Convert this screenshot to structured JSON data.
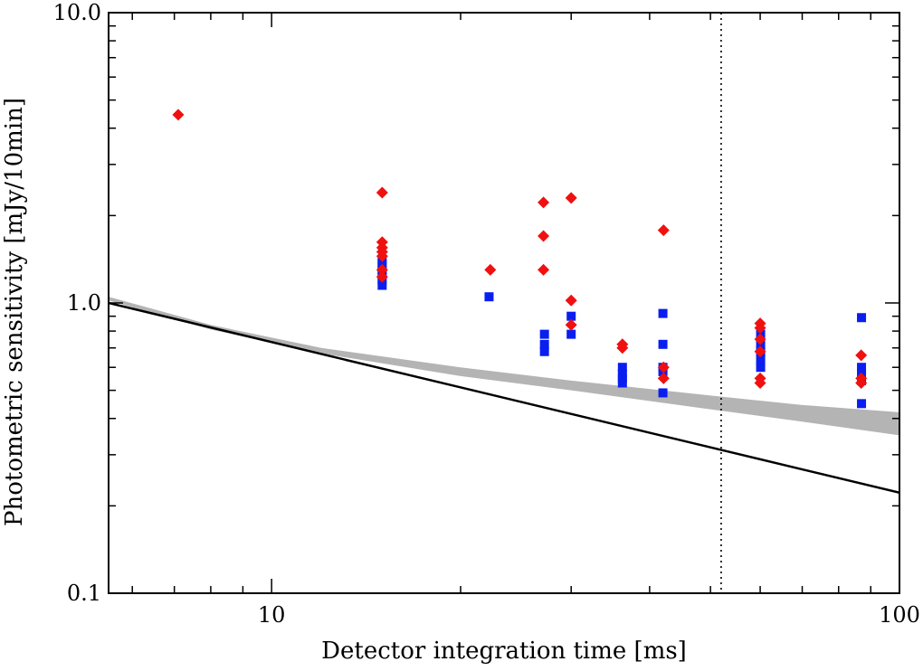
{
  "chart_data": {
    "type": "scatter",
    "title": "",
    "xlabel": "Detector integration time [ms]",
    "ylabel": "Photometric sensitivity [mJy/10min]",
    "xscale": "log",
    "yscale": "log",
    "xlim": [
      5.5,
      100
    ],
    "ylim": [
      0.1,
      10.0
    ],
    "x_tick_labels": [
      {
        "value": 10,
        "label": "10"
      },
      {
        "value": 100,
        "label": "100"
      }
    ],
    "y_tick_labels": [
      {
        "value": 0.1,
        "label": "0.1"
      },
      {
        "value": 1.0,
        "label": "1.0"
      },
      {
        "value": 10.0,
        "label": "10.0"
      }
    ],
    "vertical_reference_line": {
      "x": 52,
      "style": "dotted"
    },
    "series": [
      {
        "name": "blue squares",
        "marker": "square",
        "color": "#0a1ef0",
        "points": [
          [
            15,
            1.4
          ],
          [
            15,
            1.36
          ],
          [
            15,
            1.3
          ],
          [
            15,
            1.25
          ],
          [
            15,
            1.2
          ],
          [
            15,
            1.15
          ],
          [
            22.2,
            1.05
          ],
          [
            27.2,
            0.78
          ],
          [
            27.2,
            0.72
          ],
          [
            27.2,
            0.68
          ],
          [
            30.0,
            0.9
          ],
          [
            30.0,
            0.78
          ],
          [
            36.2,
            0.6
          ],
          [
            36.2,
            0.57
          ],
          [
            36.2,
            0.55
          ],
          [
            36.2,
            0.53
          ],
          [
            42.0,
            0.92
          ],
          [
            42.0,
            0.72
          ],
          [
            42.0,
            0.6
          ],
          [
            42.0,
            0.58
          ],
          [
            42.0,
            0.49
          ],
          [
            60.1,
            0.78
          ],
          [
            60.1,
            0.72
          ],
          [
            60.1,
            0.68
          ],
          [
            60.1,
            0.64
          ],
          [
            60.1,
            0.6
          ],
          [
            87.0,
            0.89
          ],
          [
            87.0,
            0.6
          ],
          [
            87.0,
            0.57
          ],
          [
            87.0,
            0.54
          ],
          [
            87.0,
            0.45
          ]
        ]
      },
      {
        "name": "red diamonds",
        "marker": "diamond",
        "color": "#f01010",
        "points": [
          [
            7.1,
            4.45
          ],
          [
            15,
            2.4
          ],
          [
            15,
            1.62
          ],
          [
            15,
            1.55
          ],
          [
            15,
            1.5
          ],
          [
            15,
            1.45
          ],
          [
            15,
            1.3
          ],
          [
            15,
            1.23
          ],
          [
            22.3,
            1.3
          ],
          [
            27.1,
            2.22
          ],
          [
            27.1,
            1.7
          ],
          [
            27.1,
            1.3
          ],
          [
            30.0,
            2.3
          ],
          [
            30.0,
            1.02
          ],
          [
            30.0,
            0.84
          ],
          [
            36.2,
            0.72
          ],
          [
            36.2,
            0.7
          ],
          [
            42.1,
            1.78
          ],
          [
            42.1,
            0.6
          ],
          [
            42.1,
            0.55
          ],
          [
            60.0,
            0.85
          ],
          [
            60.0,
            0.82
          ],
          [
            60.0,
            0.75
          ],
          [
            60.0,
            0.68
          ],
          [
            60.0,
            0.55
          ],
          [
            60.0,
            0.53
          ],
          [
            86.9,
            0.66
          ],
          [
            86.9,
            0.55
          ],
          [
            86.9,
            0.53
          ]
        ]
      },
      {
        "name": "black line",
        "type": "line",
        "color": "#000000",
        "points": [
          [
            5.5,
            1.0
          ],
          [
            100,
            0.222
          ]
        ]
      },
      {
        "name": "grey band",
        "type": "area",
        "color": "#b4b4b4",
        "upper": [
          [
            5.5,
            1.05
          ],
          [
            8,
            0.84
          ],
          [
            12,
            0.7
          ],
          [
            20,
            0.6
          ],
          [
            30,
            0.54
          ],
          [
            50,
            0.48
          ],
          [
            70,
            0.445
          ],
          [
            100,
            0.42
          ]
        ],
        "lower": [
          [
            5.5,
            1.02
          ],
          [
            8,
            0.81
          ],
          [
            12,
            0.67
          ],
          [
            20,
            0.56
          ],
          [
            30,
            0.5
          ],
          [
            50,
            0.43
          ],
          [
            70,
            0.39
          ],
          [
            100,
            0.35
          ]
        ]
      }
    ]
  }
}
